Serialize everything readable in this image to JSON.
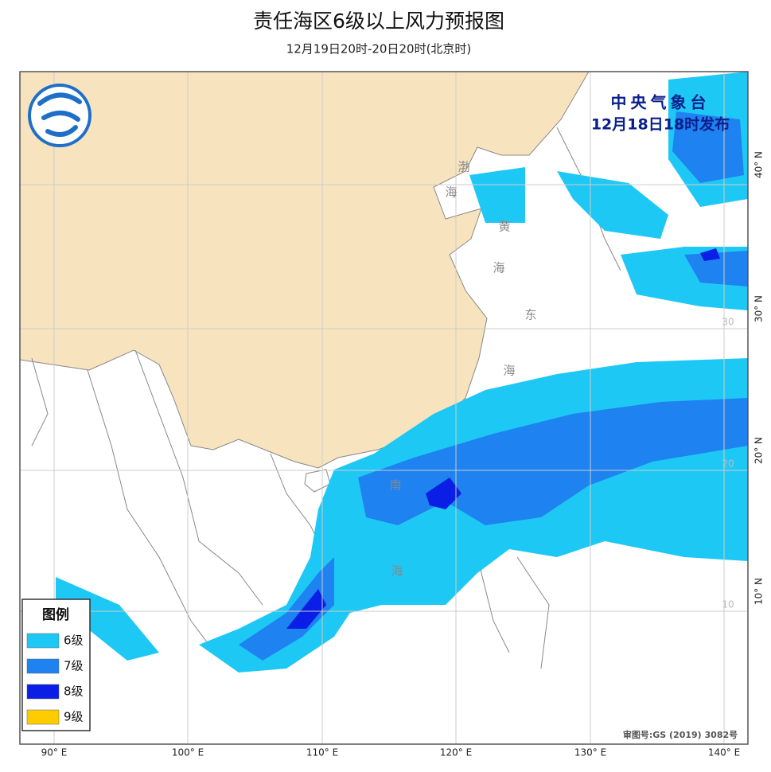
{
  "header": {
    "title": "责任海区6级以上风力预报图",
    "subtitle": "12月19日20时-20日20时(北京时)"
  },
  "issuer": {
    "agency": "中央气象台",
    "time": "12月18日18时发布"
  },
  "legend": {
    "title": "图例",
    "items": [
      {
        "label": "6级",
        "color": "#1ec8f5"
      },
      {
        "label": "7级",
        "color": "#1e82f0"
      },
      {
        "label": "8级",
        "color": "#0a1ee6"
      },
      {
        "label": "9级",
        "color": "#ffcc00"
      }
    ]
  },
  "axes": {
    "longitude": [
      "90° E",
      "100° E",
      "110° E",
      "120° E",
      "130° E",
      "140° E"
    ],
    "latitude": [
      "40° N",
      "30° N",
      "20° N",
      "10° N"
    ]
  },
  "map_labels": {
    "seas": [
      "渤",
      "海",
      "黄",
      "海",
      "东",
      "海",
      "南",
      "海"
    ],
    "grid_values": [
      "30",
      "20",
      "10"
    ]
  },
  "footer": {
    "approval": "审图号:GS (2019) 3082号"
  }
}
